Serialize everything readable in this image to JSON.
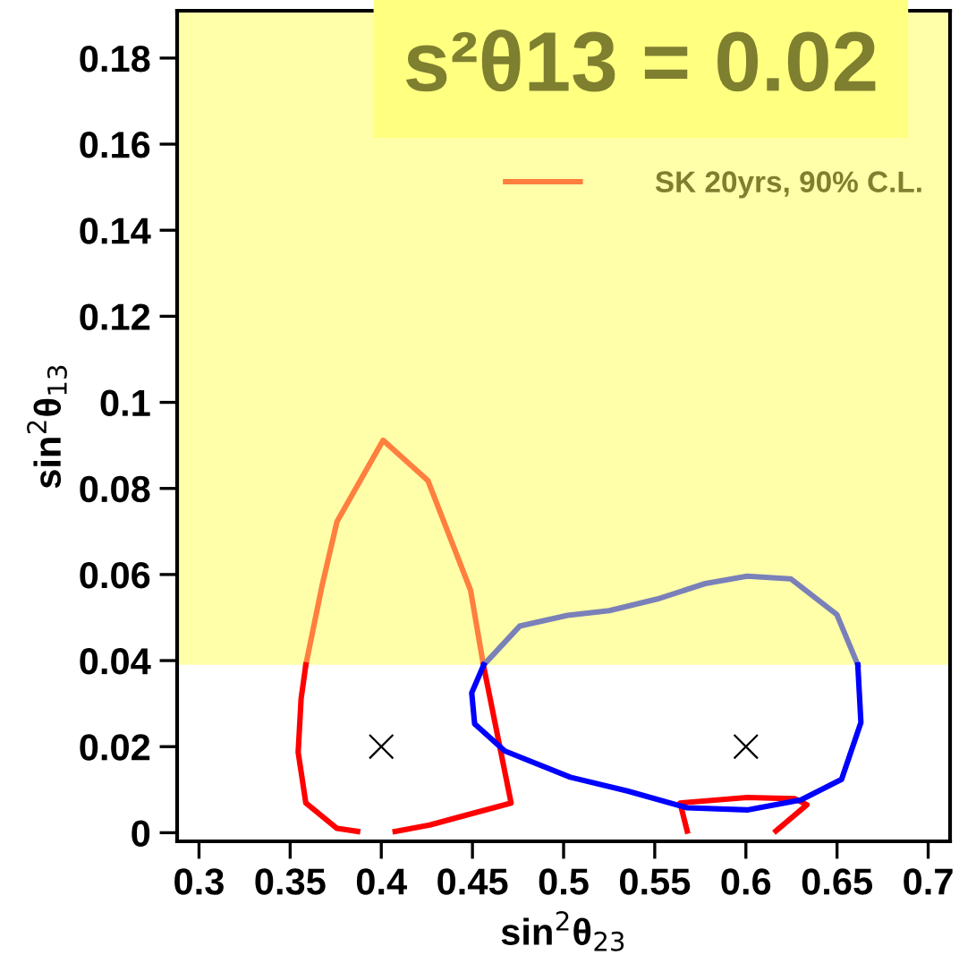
{
  "chart_data": {
    "type": "line",
    "title": "s²θ13 = 0.02",
    "xlabel": "sin$^{2}$θ$_{23}$",
    "ylabel": "sin$^{2}$θ$_{13}$",
    "xlim": [
      0.288,
      0.712
    ],
    "ylim": [
      -0.002,
      0.191
    ],
    "xticks": [
      0.3,
      0.35,
      0.4,
      0.45,
      0.5,
      0.55,
      0.6,
      0.65,
      0.7
    ],
    "yticks": [
      0,
      0.02,
      0.04,
      0.06,
      0.08,
      0.1,
      0.12,
      0.14,
      0.16,
      0.18
    ],
    "grid": false,
    "legend": "top right",
    "line_style": "solid",
    "marker": "none",
    "bands": [
      {
        "axis": "y",
        "from": 0.039,
        "to": 0.191,
        "color": "#ffffaa"
      }
    ],
    "series": [
      {
        "name": "SK 20yrs, 90% C.L.",
        "color": "#ff7f3f",
        "x": [
          0.3586,
          0.3675,
          0.3757,
          0.401,
          0.4256,
          0.449,
          0.456
        ],
        "values": [
          0.039,
          0.0574,
          0.0723,
          0.0912,
          0.0818,
          0.0563,
          0.039
        ]
      },
      {
        "color": "#ff0000",
        "x": [
          0.456,
          0.4712,
          0.4266,
          0.4076,
          0.397,
          0.387,
          0.3757,
          0.3586,
          0.3544,
          0.356,
          0.3586,
          0.5,
          0.5678,
          0.5639,
          0.6007,
          0.6269,
          0.6335,
          0.6165
        ],
        "values": [
          0.039,
          0.0069,
          0.0018,
          0.0003,
          null,
          0.0003,
          0.001,
          0.0069,
          0.0187,
          0.0311,
          0.039,
          null,
          0.0004,
          0.0069,
          0.0082,
          0.0079,
          0.0065,
          0.0004
        ]
      },
      {
        "color": "#7a80b8",
        "x": [
          0.4562,
          0.4759,
          0.5022,
          0.5251,
          0.5514,
          0.5777,
          0.6007,
          0.6246,
          0.6499,
          0.6614
        ],
        "values": [
          0.039,
          0.048,
          0.0505,
          0.0516,
          0.0543,
          0.0579,
          0.0596,
          0.059,
          0.0507,
          0.039
        ]
      },
      {
        "color": "#0000ff",
        "x": [
          0.6614,
          0.6631,
          0.6525,
          0.6302,
          0.6007,
          0.5678,
          0.535,
          0.5037,
          0.4677,
          0.4512,
          0.4496,
          0.4562
        ],
        "values": [
          0.039,
          0.0256,
          0.0124,
          0.0076,
          0.0053,
          0.0058,
          0.0097,
          0.0129,
          0.019,
          0.0253,
          0.0325,
          0.039
        ]
      },
      {
        "type": "scatter",
        "marker": "cross",
        "color": "#000000",
        "x": [
          0.4,
          0.6
        ],
        "values": [
          0.02,
          0.02
        ]
      }
    ]
  }
}
